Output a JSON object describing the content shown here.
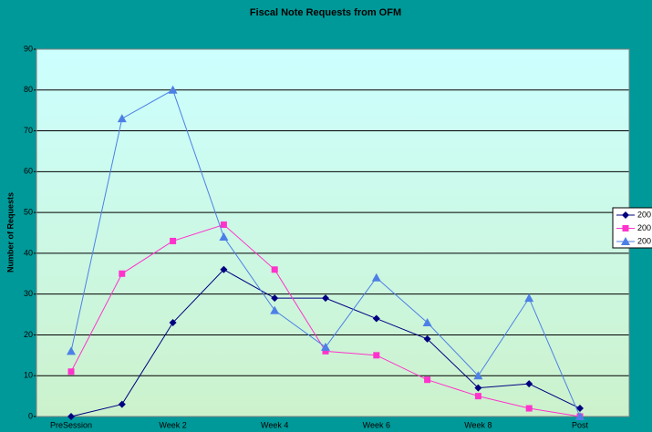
{
  "chart_data": {
    "type": "line",
    "title": "Fiscal Note Requests from OFM",
    "y_label": "Number of Requests",
    "categories": [
      "PreSession",
      null,
      "Week 2",
      null,
      "Week 4",
      null,
      "Week 6",
      null,
      "Week 8",
      null,
      "Post"
    ],
    "series": [
      {
        "name": "200",
        "color": "#000080",
        "marker": "diamond",
        "values": [
          0,
          3,
          23,
          36,
          29,
          29,
          24,
          19,
          7,
          8,
          2
        ]
      },
      {
        "name": "200",
        "color": "#ff33cc",
        "marker": "square",
        "values": [
          11,
          35,
          43,
          47,
          36,
          16,
          15,
          9,
          5,
          2,
          0
        ]
      },
      {
        "name": "200",
        "color": "#4d80e6",
        "marker": "triangle",
        "values": [
          16,
          73,
          80,
          44,
          26,
          17,
          34,
          23,
          10,
          29,
          0
        ]
      }
    ],
    "ylim": [
      0,
      90
    ],
    "yticks": [
      0,
      10,
      20,
      30,
      40,
      50,
      60,
      70,
      80,
      90
    ],
    "grid": true,
    "legend": "right"
  }
}
